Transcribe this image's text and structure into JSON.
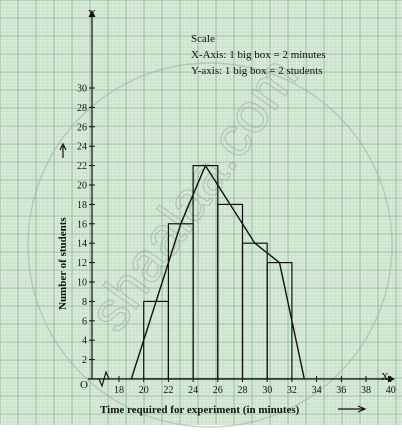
{
  "chart_data": {
    "type": "bar",
    "subtype": "histogram with frequency polygon",
    "xlabel": "Time required for experiment (in minutes)",
    "ylabel": "Number of students",
    "x_axis_letter": "X",
    "y_axis_letter": "Y",
    "origin_label": "O",
    "x_ticks": [
      18,
      20,
      22,
      24,
      26,
      28,
      30,
      32,
      34,
      36,
      38,
      40
    ],
    "y_ticks": [
      2,
      4,
      6,
      8,
      10,
      12,
      14,
      16,
      18,
      20,
      22,
      24,
      26,
      28,
      30
    ],
    "xlim": [
      16,
      42
    ],
    "ylim": [
      0,
      31
    ],
    "x_axis_break": true,
    "bins": [
      [
        20,
        22
      ],
      [
        22,
        24
      ],
      [
        24,
        26
      ],
      [
        26,
        28
      ],
      [
        28,
        30
      ],
      [
        30,
        32
      ]
    ],
    "values": [
      8,
      16,
      22,
      18,
      14,
      12
    ],
    "polygon_x": [
      19,
      21,
      23,
      25,
      27,
      29,
      31,
      33
    ],
    "polygon_y": [
      0,
      8,
      16,
      22,
      18,
      14,
      12,
      0
    ],
    "grid": true,
    "scale": {
      "title": "Scale",
      "x_line": "X-Axis: 1 big box = 2 minutes",
      "y_line": "Y-axis: 1 big box = 2 students"
    },
    "colors": {
      "background": "#d8ead9",
      "grid_minor": "#a9cdac",
      "grid_major": "#6fa674",
      "ink": "#111111"
    },
    "watermark": "shaalaa.com"
  }
}
